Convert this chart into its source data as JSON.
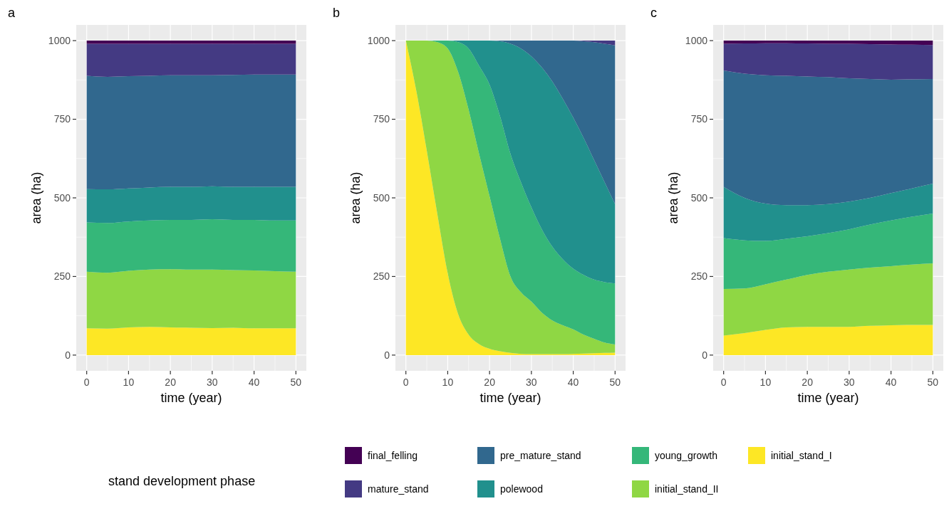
{
  "chart_data": [
    {
      "type": "area",
      "title": "a",
      "xlabel": "time (year)",
      "ylabel": "area (ha)",
      "stacked": true,
      "x": [
        0,
        5,
        10,
        15,
        20,
        25,
        30,
        35,
        40,
        45,
        50
      ],
      "xlim": [
        -2.5,
        52.5
      ],
      "xticks": [
        0,
        10,
        20,
        30,
        40,
        50
      ],
      "ylim": [
        -50,
        1050
      ],
      "yticks": [
        0,
        250,
        500,
        750,
        1000
      ],
      "grid": true,
      "series": [
        {
          "color": "#fde725",
          "values": [
            85,
            84,
            88,
            90,
            88,
            87,
            86,
            87,
            85,
            85,
            85
          ]
        },
        {
          "color": "#8fd744",
          "values": [
            180,
            178,
            180,
            182,
            185,
            185,
            186,
            183,
            184,
            182,
            180
          ]
        },
        {
          "color": "#35b779",
          "values": [
            157,
            158,
            157,
            156,
            157,
            158,
            160,
            160,
            161,
            161,
            163
          ]
        },
        {
          "color": "#21908d",
          "values": [
            106,
            107,
            105,
            105,
            105,
            105,
            105,
            105,
            105,
            107,
            107
          ]
        },
        {
          "color": "#31688e",
          "values": [
            360,
            358,
            357,
            355,
            355,
            355,
            353,
            356,
            357,
            357,
            357
          ]
        },
        {
          "color": "#443a83",
          "values": [
            102,
            105,
            103,
            102,
            100,
            100,
            100,
            99,
            98,
            98,
            98
          ]
        },
        {
          "color": "#440154",
          "values": [
            10,
            10,
            10,
            10,
            10,
            10,
            10,
            10,
            10,
            10,
            10
          ]
        }
      ]
    },
    {
      "type": "area",
      "title": "b",
      "xlabel": "time (year)",
      "ylabel": "area (ha)",
      "stacked": true,
      "x": [
        0,
        2.5,
        5,
        7.5,
        10,
        12.5,
        15,
        17.5,
        20,
        22.5,
        25,
        27.5,
        30,
        32.5,
        35,
        37.5,
        40,
        42.5,
        45,
        47.5,
        50
      ],
      "xlim": [
        -2.5,
        52.5
      ],
      "xticks": [
        0,
        10,
        20,
        30,
        40,
        50
      ],
      "ylim": [
        -50,
        1050
      ],
      "yticks": [
        0,
        250,
        500,
        750,
        1000
      ],
      "grid": true,
      "series": [
        {
          "color": "#fde725",
          "values": [
            1000,
            840,
            650,
            450,
            260,
            130,
            65,
            35,
            20,
            12,
            7,
            4,
            3,
            3,
            3,
            3,
            4,
            5,
            6,
            7,
            8
          ]
        },
        {
          "color": "#8fd744",
          "values": [
            0,
            160,
            350,
            545,
            715,
            770,
            715,
            605,
            485,
            358,
            243,
            196,
            167,
            132,
            107,
            92,
            78,
            60,
            46,
            33,
            26
          ]
        },
        {
          "color": "#35b779",
          "values": [
            0,
            0,
            0,
            5,
            25,
            95,
            195,
            280,
            355,
            390,
            390,
            350,
            300,
            265,
            235,
            210,
            193,
            190,
            188,
            192,
            194
          ]
        },
        {
          "color": "#21908d",
          "values": [
            0,
            0,
            0,
            0,
            0,
            5,
            25,
            80,
            140,
            238,
            350,
            425,
            480,
            515,
            525,
            510,
            480,
            435,
            380,
            318,
            252
          ]
        },
        {
          "color": "#31688e",
          "values": [
            0,
            0,
            0,
            0,
            0,
            0,
            0,
            0,
            0,
            2,
            10,
            25,
            50,
            85,
            130,
            185,
            245,
            308,
            375,
            440,
            505
          ]
        },
        {
          "color": "#443a83",
          "values": [
            0,
            0,
            0,
            0,
            0,
            0,
            0,
            0,
            0,
            0,
            0,
            0,
            0,
            0,
            0,
            0,
            0,
            2,
            5,
            10,
            15
          ]
        }
      ]
    },
    {
      "type": "area",
      "title": "c",
      "xlabel": "time (year)",
      "ylabel": "area (ha)",
      "stacked": true,
      "x": [
        0,
        5,
        10,
        15,
        20,
        25,
        30,
        35,
        40,
        45,
        50
      ],
      "xlim": [
        -2.5,
        52.5
      ],
      "xticks": [
        0,
        10,
        20,
        30,
        40,
        50
      ],
      "ylim": [
        -50,
        1050
      ],
      "yticks": [
        0,
        250,
        500,
        750,
        1000
      ],
      "grid": true,
      "legend": "bottom",
      "legend_title": "stand development phase",
      "series": [
        {
          "name": "initial_stand_I",
          "color": "#fde725",
          "values": [
            62,
            70,
            80,
            88,
            90,
            90,
            90,
            93,
            95,
            96,
            96
          ]
        },
        {
          "name": "initial_stand_II",
          "color": "#8fd744",
          "values": [
            148,
            142,
            145,
            152,
            165,
            175,
            182,
            185,
            188,
            192,
            196
          ]
        },
        {
          "name": "young_growth",
          "color": "#35b779",
          "values": [
            162,
            153,
            138,
            130,
            123,
            123,
            128,
            137,
            145,
            152,
            158
          ]
        },
        {
          "name": "polewood",
          "color": "#21908d",
          "values": [
            163,
            135,
            119,
            107,
            99,
            92,
            88,
            85,
            87,
            90,
            95
          ]
        },
        {
          "name": "pre_mature_stand",
          "color": "#31688e",
          "values": [
            370,
            395,
            408,
            411,
            409,
            404,
            392,
            378,
            361,
            347,
            333
          ]
        },
        {
          "name": "mature_stand",
          "color": "#443a83",
          "values": [
            85,
            96,
            102,
            104,
            105,
            106,
            110,
            111,
            112,
            110,
            108
          ]
        },
        {
          "name": "final_felling",
          "color": "#440154",
          "values": [
            10,
            9,
            8,
            8,
            9,
            10,
            10,
            11,
            12,
            13,
            14
          ]
        }
      ]
    }
  ]
}
